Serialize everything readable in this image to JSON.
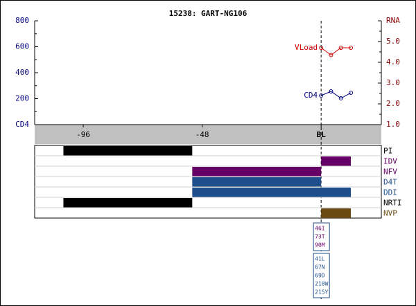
{
  "chart_data": {
    "type": "line",
    "title": "15238: GART-NG106",
    "x": [
      0,
      4,
      8,
      12
    ],
    "xlim": [
      -115.6,
      24.3
    ],
    "xticks": [
      -96,
      -48,
      {
        "value": 0,
        "label": "BL"
      }
    ],
    "ylim": [
      0,
      800
    ],
    "yticks": [
      {
        "value": 0,
        "label": "CD4"
      },
      200,
      400,
      600,
      800
    ],
    "yminorticks": [
      100,
      300,
      500,
      700
    ],
    "y2lim": [
      1,
      6
    ],
    "y2ticks": [
      {
        "value": 1,
        "label": "1.0"
      },
      {
        "value": 2,
        "label": "2.0"
      },
      {
        "value": 3,
        "label": "3.0"
      },
      {
        "value": 4,
        "label": "4.0"
      },
      {
        "value": 5,
        "label": "5.0"
      },
      {
        "value": 6,
        "label": "RNA"
      }
    ],
    "y2minorticks": [
      1.5,
      2.5,
      3.5,
      4.5,
      5.5
    ],
    "series": [
      {
        "name": "VLoad",
        "color": "#cc0000",
        "axis": "y2",
        "values": [
          4.7,
          4.35,
          4.7,
          4.7
        ]
      },
      {
        "name": "CD4",
        "color": "#000080",
        "values": [
          224,
          256,
          203,
          245
        ]
      }
    ]
  },
  "drugs": [
    {
      "name": "PI",
      "color": "#000000",
      "start": -104,
      "end": -52
    },
    {
      "name": "IDV",
      "color": "#660066",
      "start": 0,
      "end": 12
    },
    {
      "name": "NFV",
      "color": "#660066",
      "start": -52,
      "end": 0
    },
    {
      "name": "D4T",
      "color": "#1f4e8c",
      "start": -52,
      "end": 0
    },
    {
      "name": "DDI",
      "color": "#1f4e8c",
      "start": -52,
      "end": 12
    },
    {
      "name": "NRTI",
      "color": "#000000",
      "start": -104,
      "end": -52
    },
    {
      "name": "NVP",
      "color": "#6b4a14",
      "start": 0,
      "end": 12
    }
  ],
  "mutations": [
    {
      "color": "#660066",
      "items": [
        "46I",
        "73T",
        "90M"
      ]
    },
    {
      "color": "#1f4e8c",
      "items": [
        "41L",
        "67N",
        "69D",
        "210W",
        "215Y"
      ]
    }
  ]
}
